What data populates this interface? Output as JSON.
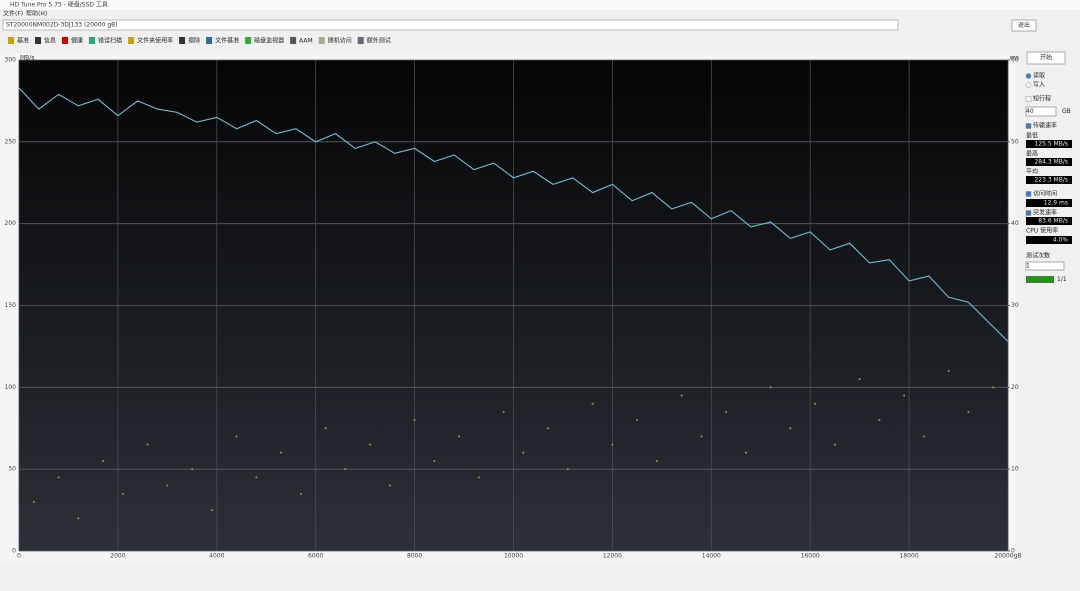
{
  "window": {
    "title": "HD Tune Pro 5.75 - 硬盘/SSD 工具",
    "menu": [
      "文件(F)",
      "帮助(H)"
    ],
    "drive": "ST20000NM002D-3DJ133 (20000 gB)",
    "exit": "退出"
  },
  "toolbar": [
    "基准",
    "信息",
    "健康",
    "错误扫描",
    "文件夹使用率",
    "擦除",
    "文件基准",
    "磁盘监视器",
    "AAM",
    "随机访问",
    "额外测试"
  ],
  "side": {
    "start": "开始",
    "read": "读取",
    "write": "写入",
    "short_stroke": "短行程",
    "short_value": "40",
    "short_unit": "GB",
    "transfer": "传输速率",
    "min_label": "最低",
    "min": "125.5 MB/s",
    "max_label": "最高",
    "max": "284.3 MB/s",
    "avg_label": "平均",
    "avg": "223.3 MB/s",
    "access": "访问时间",
    "access_value": "12.9 ms",
    "burst": "突发速率",
    "burst_value": "83.6 MB/s",
    "cpu_label": "CPU 使用率",
    "cpu": "4.0%",
    "passes_label": "测试次数",
    "passes": "1",
    "progress": "1/1"
  },
  "chart_data": {
    "type": "line",
    "y_label": "MB/s",
    "y2_label": "ms",
    "xlim": [
      0,
      20000
    ],
    "xticks": [
      0,
      2000,
      4000,
      6000,
      8000,
      10000,
      12000,
      14000,
      16000,
      18000,
      {
        "value": 20000,
        "label": "20000gB"
      }
    ],
    "ylim": [
      0,
      300
    ],
    "yticks": [
      0,
      50,
      100,
      150,
      200,
      250,
      300
    ],
    "y2lim": [
      0,
      60
    ],
    "y2ticks": [
      0,
      10,
      20,
      30,
      40,
      50,
      60
    ],
    "grid": true,
    "series": [
      {
        "name": "传输速率",
        "type": "line",
        "color": "#6fc0d4",
        "x": [
          0,
          400,
          800,
          1200,
          1600,
          2000,
          2400,
          2800,
          3200,
          3600,
          4000,
          4400,
          4800,
          5200,
          5600,
          6000,
          6400,
          6800,
          7200,
          7600,
          8000,
          8400,
          8800,
          9200,
          9600,
          10000,
          10400,
          10800,
          11200,
          11600,
          12000,
          12400,
          12800,
          13200,
          13600,
          14000,
          14400,
          14800,
          15200,
          15600,
          16000,
          16400,
          16800,
          17200,
          17600,
          18000,
          18400,
          18800,
          19200,
          19600,
          20000
        ],
        "values": [
          283,
          270,
          279,
          272,
          276,
          266,
          275,
          270,
          268,
          262,
          265,
          258,
          263,
          255,
          258,
          250,
          255,
          246,
          250,
          243,
          246,
          238,
          242,
          233,
          237,
          228,
          232,
          224,
          228,
          219,
          224,
          214,
          219,
          209,
          213,
          203,
          208,
          198,
          201,
          191,
          195,
          184,
          188,
          176,
          178,
          165,
          168,
          155,
          152,
          140,
          128
        ]
      },
      {
        "name": "访问时间",
        "type": "scatter",
        "axis": "y2",
        "color": "#9a9a48",
        "x": [
          300,
          800,
          1200,
          1700,
          2100,
          2600,
          3000,
          3500,
          3900,
          4400,
          4800,
          5300,
          5700,
          6200,
          6600,
          7100,
          7500,
          8000,
          8400,
          8900,
          9300,
          9800,
          10200,
          10700,
          11100,
          11600,
          12000,
          12500,
          12900,
          13400,
          13800,
          14300,
          14700,
          15200,
          15600,
          16100,
          16500,
          17000,
          17400,
          17900,
          18300,
          18800,
          19200,
          19700
        ],
        "values": [
          6,
          9,
          4,
          11,
          7,
          13,
          8,
          10,
          5,
          14,
          9,
          12,
          7,
          15,
          10,
          13,
          8,
          16,
          11,
          14,
          9,
          17,
          12,
          15,
          10,
          18,
          13,
          16,
          11,
          19,
          14,
          17,
          12,
          20,
          15,
          18,
          13,
          21,
          16,
          19,
          14,
          22,
          17,
          20
        ]
      }
    ]
  }
}
